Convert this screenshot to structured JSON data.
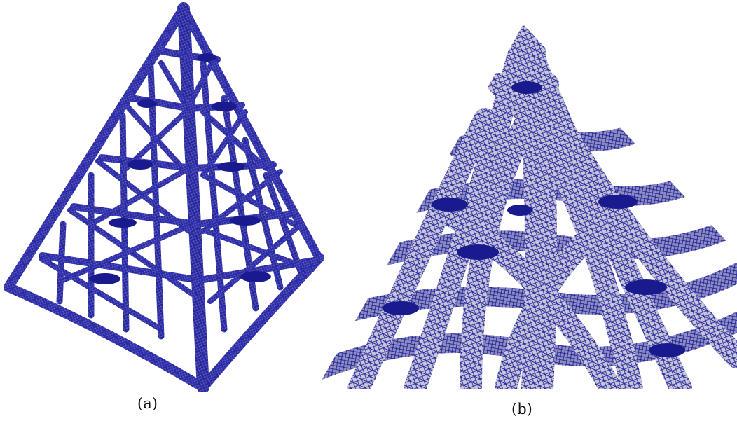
{
  "figure": {
    "panels": [
      {
        "label": "(a)",
        "kind": "coarse pyramid lattice mesh"
      },
      {
        "label": "(b)",
        "kind": "deformed pyramid lattice mesh closeup"
      }
    ],
    "colors": {
      "mesh_edge": "#1f1f9e",
      "mesh_dark": "#14148a",
      "surface": "#c9c9d6",
      "background": "#ffffff"
    }
  }
}
